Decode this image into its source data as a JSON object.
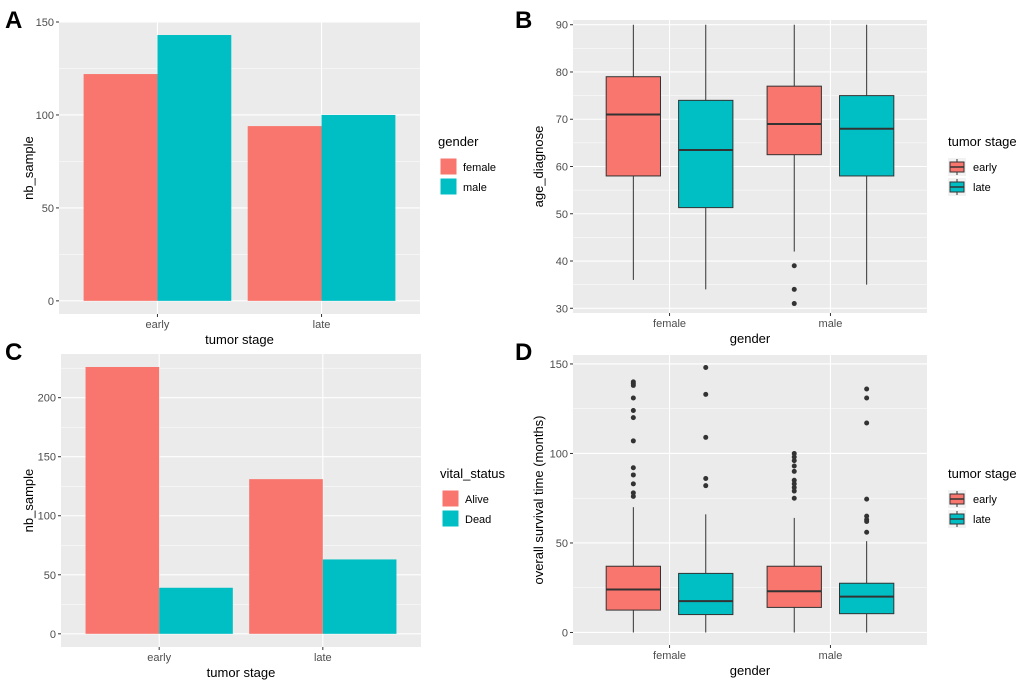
{
  "colors": {
    "red": "#F8766D",
    "teal": "#00BFC4",
    "panel_bg": "#EBEBEB",
    "grid": "#FFFFFF",
    "box_line": "#333333"
  },
  "chart_data": [
    {
      "panel_label": "A",
      "type": "bar",
      "categories": [
        "early",
        "late"
      ],
      "series": [
        {
          "name": "female",
          "values": [
            122,
            94
          ]
        },
        {
          "name": "male",
          "values": [
            143,
            100
          ]
        }
      ],
      "xlabel": "tumor stage",
      "ylabel": "nb_sample",
      "ylim": [
        0,
        150
      ],
      "yticks": [
        0,
        50,
        100,
        150
      ],
      "legend_title": "gender",
      "legend_position": "right",
      "grid": true
    },
    {
      "panel_label": "B",
      "type": "box",
      "categories": [
        "female",
        "male"
      ],
      "series": [
        {
          "name": "early",
          "boxes": [
            {
              "min": 36,
              "q1": 58,
              "median": 71,
              "q3": 79,
              "max": 90,
              "outliers": []
            },
            {
              "min": 42,
              "q1": 62.5,
              "median": 69,
              "q3": 77,
              "max": 90,
              "outliers": [
                39,
                34,
                31
              ]
            }
          ]
        },
        {
          "name": "late",
          "boxes": [
            {
              "min": 34,
              "q1": 51.3,
              "median": 63.5,
              "q3": 74,
              "max": 90,
              "outliers": []
            },
            {
              "min": 35,
              "q1": 58,
              "median": 68,
              "q3": 75,
              "max": 90,
              "outliers": []
            }
          ]
        }
      ],
      "xlabel": "gender",
      "ylabel": "age_diagnose",
      "ylim": [
        29,
        91
      ],
      "yticks": [
        30,
        40,
        50,
        60,
        70,
        80,
        90
      ],
      "legend_title": "tumor stage",
      "legend_position": "right",
      "grid": true
    },
    {
      "panel_label": "C",
      "type": "bar",
      "categories": [
        "early",
        "late"
      ],
      "series": [
        {
          "name": "Alive",
          "values": [
            226,
            131
          ]
        },
        {
          "name": "Dead",
          "values": [
            39,
            63
          ]
        }
      ],
      "xlabel": "tumor stage",
      "ylabel": "nb_sample",
      "ylim": [
        0,
        237
      ],
      "yticks": [
        0,
        50,
        100,
        150,
        200
      ],
      "legend_title": "vital_status",
      "legend_position": "right",
      "grid": true
    },
    {
      "panel_label": "D",
      "type": "box",
      "categories": [
        "female",
        "male"
      ],
      "series": [
        {
          "name": "early",
          "boxes": [
            {
              "min": 0,
              "q1": 12.5,
              "median": 24,
              "q3": 37,
              "max": 70,
              "outliers": [
                140,
                139,
                138,
                131,
                124,
                120,
                107,
                92,
                88,
                83,
                78,
                76
              ]
            },
            {
              "min": 0,
              "q1": 14,
              "median": 23,
              "q3": 37,
              "max": 64,
              "outliers": [
                100,
                98,
                96,
                93,
                90,
                85,
                83,
                81,
                79,
                75
              ]
            }
          ]
        },
        {
          "name": "late",
          "boxes": [
            {
              "min": 0,
              "q1": 10,
              "median": 17.5,
              "q3": 33,
              "max": 66,
              "outliers": [
                148,
                133,
                109,
                86,
                82
              ]
            },
            {
              "min": 0,
              "q1": 10.5,
              "median": 20,
              "q3": 27.5,
              "max": 51,
              "outliers": [
                136,
                131,
                117,
                74.5,
                65,
                63,
                62,
                56
              ]
            }
          ]
        }
      ],
      "xlabel": "gender",
      "ylabel": "overall survival time (months)",
      "ylim": [
        -7,
        155
      ],
      "yticks": [
        0,
        50,
        100,
        150
      ],
      "legend_title": "tumor stage",
      "legend_position": "right",
      "grid": true
    }
  ]
}
